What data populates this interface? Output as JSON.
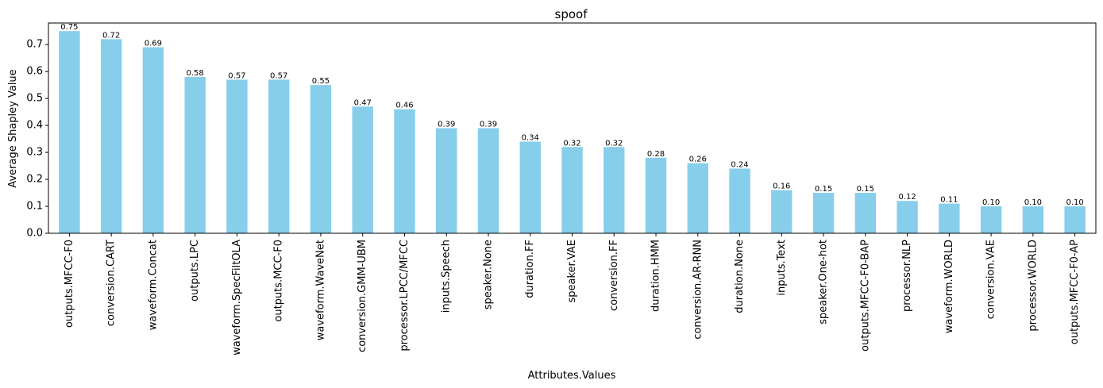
{
  "chart_data": {
    "type": "bar",
    "title": "spoof",
    "xlabel": "Attributes.Values",
    "ylabel": "Average Shapley Value",
    "ylim": [
      0,
      0.78
    ],
    "yticks": [
      "0.0",
      "0.1",
      "0.2",
      "0.3",
      "0.4",
      "0.5",
      "0.6",
      "0.7"
    ],
    "grid": false,
    "legend": "none",
    "bar_color": "#87ceeb",
    "categories": [
      "outputs.MFCC-F0",
      "conversion.CART",
      "waveform.Concat",
      "outputs.LPC",
      "waveform.SpecFiltOLA",
      "outputs.MCC-F0",
      "waveform.WaveNet",
      "conversion.GMM-UBM",
      "processor.LPCC/MFCC",
      "inputs.Speech",
      "speaker.None",
      "duration.FF",
      "speaker.VAE",
      "conversion.FF",
      "duration.HMM",
      "conversion.AR-RNN",
      "duration.None",
      "inputs.Text",
      "speaker.One-hot",
      "outputs.MFCC-F0-BAP",
      "processor.NLP",
      "waveform.WORLD",
      "conversion.VAE",
      "processor.WORLD",
      "outputs.MFCC-F0-AP"
    ],
    "values": [
      0.75,
      0.72,
      0.69,
      0.58,
      0.57,
      0.57,
      0.55,
      0.47,
      0.46,
      0.39,
      0.39,
      0.34,
      0.32,
      0.32,
      0.28,
      0.26,
      0.24,
      0.16,
      0.15,
      0.15,
      0.12,
      0.11,
      0.1,
      0.1,
      0.1
    ],
    "data_labels": [
      "0.75",
      "0.72",
      "0.69",
      "0.58",
      "0.57",
      "0.57",
      "0.55",
      "0.47",
      "0.46",
      "0.39",
      "0.39",
      "0.34",
      "0.32",
      "0.32",
      "0.28",
      "0.26",
      "0.24",
      "0.16",
      "0.15",
      "0.15",
      "0.12",
      "0.11",
      "0.10",
      "0.10",
      "0.10"
    ]
  }
}
